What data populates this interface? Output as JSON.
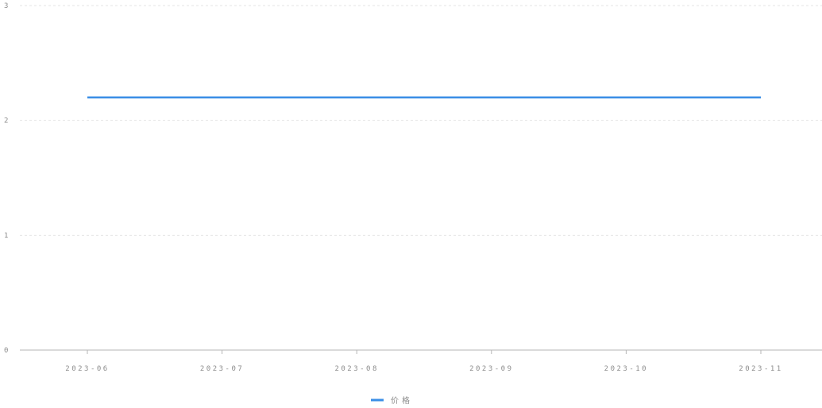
{
  "chart_data": {
    "type": "line",
    "x": [
      "2023-06",
      "2023-07",
      "2023-08",
      "2023-09",
      "2023-10",
      "2023-11"
    ],
    "series": [
      {
        "name": "价格",
        "values": [
          2.2,
          2.2,
          2.2,
          2.2,
          2.2,
          2.2
        ]
      }
    ],
    "ylim": [
      0,
      3
    ],
    "yticks": [
      "0",
      "1",
      "2",
      "3"
    ],
    "grid": "horizontal-dashed",
    "legend": "bottom-center",
    "colors": {
      "series": "#3a8ee6",
      "axis": "#b5b5b5",
      "grid": "#e4e4e4",
      "text": "#8c8c8c"
    }
  }
}
